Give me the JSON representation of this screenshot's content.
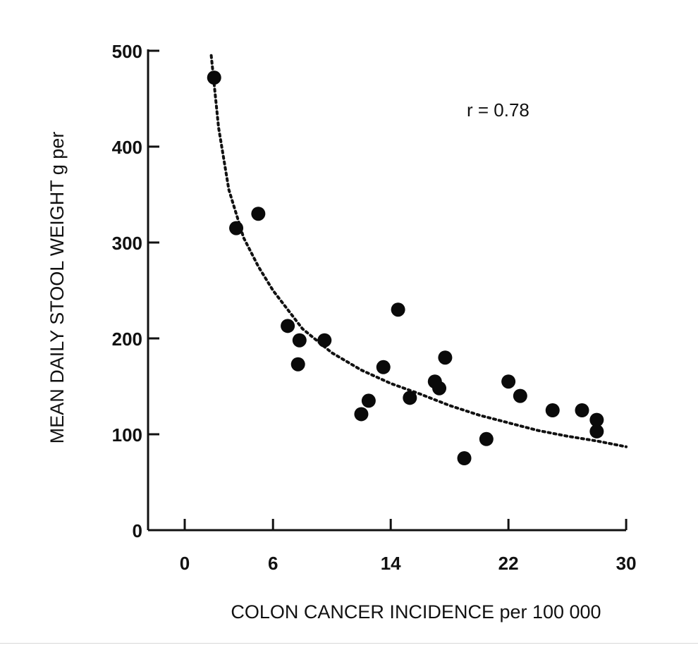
{
  "chart_data": {
    "type": "scatter",
    "title": "",
    "xlabel": "COLON CANCER INCIDENCE per 100 000",
    "ylabel": "MEAN DAILY STOOL WEIGHT g per",
    "xlim": [
      0,
      30
    ],
    "ylim": [
      0,
      500
    ],
    "x_ticks": [
      0,
      6,
      14,
      22,
      30
    ],
    "y_ticks": [
      0,
      100,
      200,
      300,
      400,
      500
    ],
    "x_tick_labels": [
      "0",
      "6",
      "14",
      "22",
      "30"
    ],
    "y_tick_labels": [
      "0",
      "100",
      "200",
      "300",
      "400",
      "500"
    ],
    "annotation": "r = 0.78",
    "grid": false,
    "legend": false,
    "points": [
      {
        "x": 2,
        "y": 472
      },
      {
        "x": 3.5,
        "y": 315
      },
      {
        "x": 5,
        "y": 330
      },
      {
        "x": 7,
        "y": 213
      },
      {
        "x": 7.8,
        "y": 198
      },
      {
        "x": 7.7,
        "y": 173
      },
      {
        "x": 9.5,
        "y": 198
      },
      {
        "x": 12,
        "y": 121
      },
      {
        "x": 12.5,
        "y": 135
      },
      {
        "x": 13.5,
        "y": 170
      },
      {
        "x": 14.5,
        "y": 230
      },
      {
        "x": 15.3,
        "y": 138
      },
      {
        "x": 17,
        "y": 155
      },
      {
        "x": 17.3,
        "y": 148
      },
      {
        "x": 17.7,
        "y": 180
      },
      {
        "x": 19,
        "y": 75
      },
      {
        "x": 20.5,
        "y": 95
      },
      {
        "x": 22,
        "y": 155
      },
      {
        "x": 22.8,
        "y": 140
      },
      {
        "x": 25,
        "y": 125
      },
      {
        "x": 27,
        "y": 125
      },
      {
        "x": 28,
        "y": 115
      },
      {
        "x": 28,
        "y": 103
      }
    ],
    "trend_curve": [
      {
        "x": 1.8,
        "y": 495
      },
      {
        "x": 2.3,
        "y": 420
      },
      {
        "x": 3,
        "y": 355
      },
      {
        "x": 4,
        "y": 305
      },
      {
        "x": 5,
        "y": 275
      },
      {
        "x": 6,
        "y": 250
      },
      {
        "x": 8,
        "y": 210
      },
      {
        "x": 10,
        "y": 185
      },
      {
        "x": 12,
        "y": 167
      },
      {
        "x": 14,
        "y": 153
      },
      {
        "x": 16,
        "y": 142
      },
      {
        "x": 18,
        "y": 130
      },
      {
        "x": 20,
        "y": 120
      },
      {
        "x": 22,
        "y": 112
      },
      {
        "x": 24,
        "y": 104
      },
      {
        "x": 26,
        "y": 98
      },
      {
        "x": 28,
        "y": 93
      },
      {
        "x": 30,
        "y": 87
      }
    ]
  }
}
